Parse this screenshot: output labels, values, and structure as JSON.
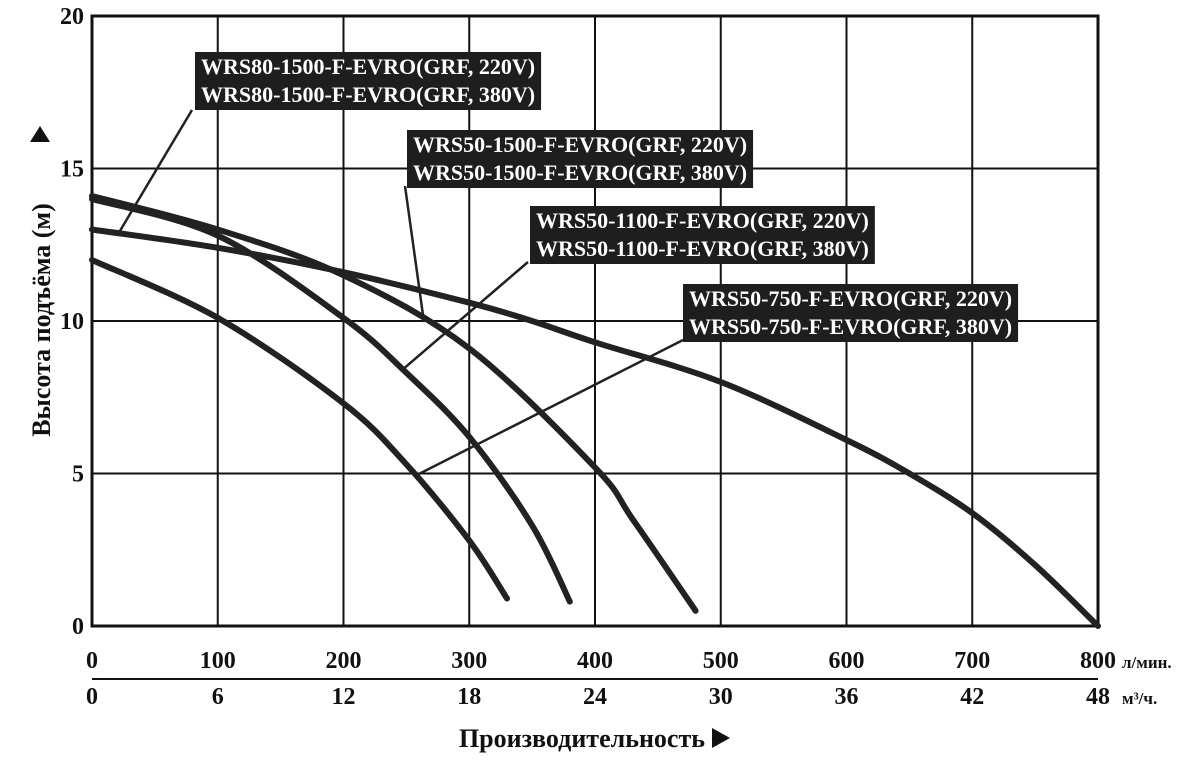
{
  "chart_data": {
    "type": "line",
    "title": "",
    "ylabel": "Высота подъёма (м)",
    "xlabel": "Производительность",
    "ylim": [
      0,
      20
    ],
    "xlim": [
      0,
      800
    ],
    "y_ticks": [
      "0",
      "5",
      "10",
      "15",
      "20"
    ],
    "x_ticks_lpm": [
      "0",
      "100",
      "200",
      "300",
      "400",
      "500",
      "600",
      "700",
      "800"
    ],
    "x_unit_lpm": "л/мин.",
    "x_ticks_m3h": [
      "0",
      "6",
      "12",
      "18",
      "24",
      "30",
      "36",
      "42",
      "48"
    ],
    "x_unit_m3h": "м³/ч.",
    "grid": true,
    "series": [
      {
        "name": "WRS80-1500-F-EVRO",
        "labels": [
          "WRS80-1500-F-EVRO(GRF, 220V)",
          "WRS80-1500-F-EVRO(GRF, 380V)"
        ],
        "x": [
          0,
          100,
          200,
          300,
          350,
          400,
          500,
          600,
          650,
          700,
          750,
          800
        ],
        "y": [
          13,
          12.4,
          11.6,
          10.6,
          10,
          9.3,
          8,
          6.1,
          5,
          3.7,
          2,
          0
        ]
      },
      {
        "name": "WRS50-1500-F-EVRO",
        "labels": [
          "WRS50-1500-F-EVRO(GRF, 220V)",
          "WRS50-1500-F-EVRO(GRF, 380V)"
        ],
        "x": [
          0,
          100,
          200,
          300,
          400,
          430,
          480
        ],
        "y": [
          14.1,
          13,
          11.5,
          9.1,
          5.2,
          3.5,
          0.5
        ]
      },
      {
        "name": "WRS50-1100-F-EVRO",
        "labels": [
          "WRS50-1100-F-EVRO(GRF, 220V)",
          "WRS50-1100-F-EVRO(GRF, 380V)"
        ],
        "x": [
          0,
          100,
          200,
          250,
          300,
          350,
          380
        ],
        "y": [
          14,
          12.8,
          10.1,
          8.3,
          6.2,
          3.3,
          0.8
        ]
      },
      {
        "name": "WRS50-750-F-EVRO",
        "labels": [
          "WRS50-750-F-EVRO(GRF, 220V)",
          "WRS50-750-F-EVRO(GRF, 380V)"
        ],
        "x": [
          0,
          100,
          200,
          250,
          300,
          330
        ],
        "y": [
          12,
          10.1,
          7.3,
          5.3,
          2.8,
          0.9
        ]
      }
    ]
  }
}
